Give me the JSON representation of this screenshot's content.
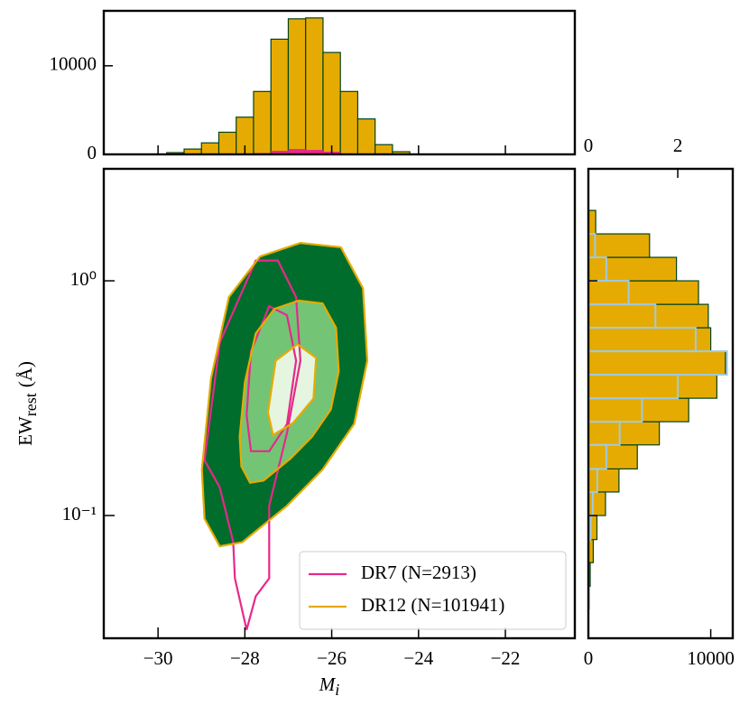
{
  "chart_data": [
    {
      "type": "histogram",
      "orientation": "vertical",
      "bins": [
        -29.8,
        -29.4,
        -29.0,
        -28.6,
        -28.2,
        -27.8,
        -27.4,
        -27.0,
        -26.6,
        -26.2,
        -25.8,
        -25.4,
        -25.0,
        -24.6,
        -24.2
      ],
      "series": [
        {
          "name": "DR12",
          "color": "#e6ab02",
          "edge": "#00441b",
          "values": [
            200,
            600,
            1300,
            2500,
            4200,
            7100,
            13000,
            15300,
            15400,
            11500,
            7100,
            4000,
            1100,
            300
          ]
        },
        {
          "name": "DR7",
          "color": "#e7298a",
          "values": [
            0,
            0,
            0,
            5,
            40,
            150,
            400,
            600,
            500,
            300,
            100,
            20,
            0,
            0
          ]
        }
      ],
      "xlim": [
        -31.25,
        -20.4
      ],
      "ylim": [
        0,
        16200
      ],
      "yticks": [
        0,
        10000
      ]
    },
    {
      "type": "contour",
      "xlim": [
        -31.25,
        -20.4
      ],
      "ylim": [
        0.03,
        3.0
      ],
      "ylog": true,
      "xticks": [
        {
          "value": -30,
          "label": "−30"
        },
        {
          "value": -28,
          "label": "−28"
        },
        {
          "value": -26,
          "label": "−26"
        },
        {
          "value": -24,
          "label": "−24"
        },
        {
          "value": -22,
          "label": "−22"
        }
      ],
      "yticks": [
        {
          "value": 1,
          "label": "10⁰"
        },
        {
          "value": 0.1,
          "label": "10⁻¹"
        }
      ],
      "xlabel": {
        "main": "M",
        "sub": "i"
      },
      "ylabel": {
        "main": "EW",
        "sub": "rest",
        "unit": "(Å)"
      },
      "legend": "lower right",
      "fills": [
        {
          "color": "#006d2c",
          "x": [
            -28.99,
            -28.78,
            -28.37,
            -27.65,
            -26.72,
            -25.79,
            -25.28,
            -25.18,
            -25.48,
            -26.21,
            -27.03,
            -28.06,
            -28.58,
            -28.93
          ],
          "y": [
            0.157,
            0.383,
            0.852,
            1.27,
            1.45,
            1.39,
            0.93,
            0.457,
            0.246,
            0.157,
            0.11,
            0.077,
            0.074,
            0.097
          ]
        },
        {
          "color": "#74c476",
          "x": [
            -28.12,
            -28.0,
            -27.75,
            -27.32,
            -26.76,
            -26.21,
            -25.9,
            -25.84,
            -26.02,
            -26.45,
            -26.95,
            -27.57,
            -27.88,
            -28.08
          ],
          "y": [
            0.217,
            0.37,
            0.597,
            0.759,
            0.823,
            0.801,
            0.63,
            0.411,
            0.283,
            0.217,
            0.175,
            0.141,
            0.138,
            0.162
          ]
        },
        {
          "color": "#e5f5e0",
          "x": [
            -27.47,
            -27.29,
            -26.79,
            -26.36,
            -26.42,
            -26.89,
            -27.35
          ],
          "y": [
            0.275,
            0.457,
            0.537,
            0.47,
            0.315,
            0.248,
            0.22
          ]
        }
      ],
      "series": [
        {
          "name": "DR7 (N=2913)",
          "color": "#e7298a",
          "contours": [
            {
              "x": [
                -28.93,
                -28.58,
                -27.75,
                -27.24,
                -26.82,
                -26.72,
                -27.03,
                -27.44,
                -27.44,
                -27.75,
                -27.96,
                -28.23,
                -28.27,
                -28.58
              ],
              "y": [
                0.172,
                0.546,
                1.22,
                1.22,
                0.852,
                0.457,
                0.225,
                0.11,
                0.054,
                0.0453,
                0.0326,
                0.054,
                0.0773,
                0.132
              ]
            },
            {
              "x": [
                -27.96,
                -27.86,
                -27.44,
                -27.03,
                -26.82,
                -27.03,
                -27.44,
                -27.86
              ],
              "y": [
                0.268,
                0.5,
                0.78,
                0.713,
                0.457,
                0.245,
                0.188,
                0.188
              ]
            }
          ]
        },
        {
          "name": "DR12 (N=101941)",
          "color": "#e6ab02",
          "contours": [
            {
              "x": [
                -28.99,
                -28.78,
                -28.37,
                -27.65,
                -26.72,
                -25.79,
                -25.28,
                -25.18,
                -25.48,
                -26.21,
                -27.03,
                -28.06,
                -28.58,
                -28.93
              ],
              "y": [
                0.157,
                0.383,
                0.852,
                1.27,
                1.45,
                1.39,
                0.93,
                0.457,
                0.246,
                0.157,
                0.11,
                0.077,
                0.074,
                0.097
              ]
            },
            {
              "x": [
                -28.12,
                -28.0,
                -27.75,
                -27.32,
                -26.76,
                -26.21,
                -25.9,
                -25.84,
                -26.02,
                -26.45,
                -26.95,
                -27.57,
                -27.88,
                -28.08
              ],
              "y": [
                0.217,
                0.37,
                0.597,
                0.759,
                0.823,
                0.801,
                0.63,
                0.411,
                0.283,
                0.217,
                0.175,
                0.141,
                0.138,
                0.162
              ]
            },
            {
              "x": [
                -27.47,
                -27.29,
                -26.79,
                -26.36,
                -26.42,
                -26.89,
                -27.35
              ],
              "y": [
                0.275,
                0.457,
                0.537,
                0.47,
                0.315,
                0.248,
                0.22
              ]
            }
          ]
        }
      ]
    },
    {
      "type": "histogram",
      "orientation": "horizontal",
      "bins": [
        0.04,
        0.05,
        0.063,
        0.079,
        0.1,
        0.126,
        0.158,
        0.2,
        0.251,
        0.316,
        0.398,
        0.501,
        0.631,
        0.794,
        1.0,
        1.259,
        1.585,
        1.995,
        2.512
      ],
      "ylim": [
        0.03,
        3.0
      ],
      "ylog": true,
      "xlim": [
        0,
        11800
      ],
      "xticks": [
        0,
        10000
      ],
      "x2lim": [
        0,
        3.23
      ],
      "x2ticks": [
        0,
        2
      ],
      "series": [
        {
          "name": "DR12",
          "color": "#e6ab02",
          "edge": "#00441b",
          "values": [
            50,
            150,
            400,
            700,
            1400,
            2500,
            4000,
            5800,
            8200,
            10500,
            11200,
            10000,
            9800,
            9000,
            7200,
            5000,
            600,
            0
          ]
        },
        {
          "name": "DR7",
          "color": "#9ecae1",
          "axis": "x2",
          "values": [
            0,
            0,
            0,
            0.05,
            0.1,
            0.2,
            0.4,
            0.7,
            1.2,
            2.0,
            3.1,
            2.4,
            1.5,
            0.9,
            0.4,
            0.15,
            0,
            0
          ]
        }
      ]
    }
  ]
}
